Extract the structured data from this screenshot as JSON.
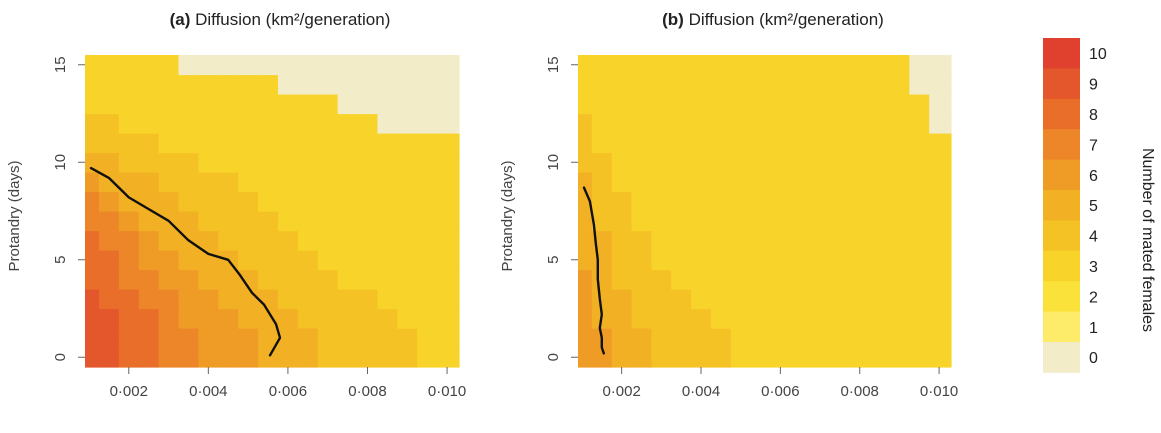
{
  "colors": {
    "scale": [
      "#f2ecc8",
      "#fcec6a",
      "#fbe23a",
      "#f8d42a",
      "#f5c226",
      "#f2b025",
      "#ef9c27",
      "#ec8628",
      "#e86e2a",
      "#e4562c",
      "#e0402e"
    ],
    "line": "#111111"
  },
  "chart_data": [
    {
      "type": "heatmap",
      "panel": "(a)",
      "title": "Diffusion (km²/generation)",
      "ylabel": "Protandry (days)",
      "xlabel": "",
      "xlim": [
        0.0009,
        0.0103
      ],
      "ylim": [
        -0.5,
        15.5
      ],
      "xticks": [
        0.002,
        0.004,
        0.006,
        0.008,
        0.01
      ],
      "xtick_labels": [
        "0·002",
        "0·004",
        "0·006",
        "0·008",
        "0·010"
      ],
      "yticks": [
        0,
        5,
        10,
        15
      ],
      "x": [
        0.001,
        0.0015,
        0.002,
        0.0025,
        0.003,
        0.0035,
        0.004,
        0.0045,
        0.005,
        0.0055,
        0.006,
        0.0065,
        0.007,
        0.0075,
        0.008,
        0.0085,
        0.009,
        0.0095,
        0.01
      ],
      "y": [
        0,
        1,
        2,
        3,
        4,
        5,
        6,
        7,
        8,
        9,
        10,
        11,
        12,
        13,
        14,
        15
      ],
      "values": [
        [
          9,
          9,
          8,
          8,
          7,
          7,
          6,
          6,
          6,
          5,
          5,
          5,
          4,
          4,
          4,
          4,
          4,
          3,
          3
        ],
        [
          9,
          9,
          8,
          8,
          7,
          7,
          6,
          6,
          6,
          5,
          5,
          5,
          4,
          4,
          4,
          4,
          4,
          3,
          3
        ],
        [
          9,
          9,
          8,
          8,
          7,
          6,
          6,
          6,
          5,
          5,
          5,
          4,
          4,
          4,
          4,
          4,
          3,
          3,
          3
        ],
        [
          9,
          8,
          8,
          7,
          7,
          6,
          6,
          5,
          5,
          5,
          4,
          4,
          4,
          4,
          4,
          3,
          3,
          3,
          3
        ],
        [
          8,
          8,
          7,
          7,
          6,
          6,
          5,
          5,
          5,
          4,
          4,
          4,
          4,
          3,
          3,
          3,
          3,
          3,
          3
        ],
        [
          8,
          8,
          7,
          6,
          6,
          5,
          5,
          5,
          4,
          4,
          4,
          4,
          3,
          3,
          3,
          3,
          3,
          3,
          3
        ],
        [
          8,
          7,
          7,
          6,
          5,
          5,
          5,
          4,
          4,
          4,
          4,
          3,
          3,
          3,
          3,
          3,
          3,
          3,
          3
        ],
        [
          7,
          7,
          6,
          5,
          5,
          5,
          4,
          4,
          4,
          4,
          3,
          3,
          3,
          3,
          3,
          3,
          3,
          3,
          3
        ],
        [
          7,
          6,
          5,
          5,
          5,
          4,
          4,
          4,
          4,
          3,
          3,
          3,
          3,
          3,
          3,
          3,
          3,
          3,
          3
        ],
        [
          6,
          5,
          5,
          5,
          4,
          4,
          4,
          4,
          3,
          3,
          3,
          3,
          3,
          3,
          3,
          3,
          3,
          3,
          3
        ],
        [
          5,
          5,
          4,
          4,
          4,
          4,
          3,
          3,
          3,
          3,
          3,
          3,
          3,
          3,
          3,
          3,
          3,
          3,
          3
        ],
        [
          4,
          4,
          4,
          4,
          3,
          3,
          3,
          3,
          3,
          3,
          3,
          3,
          3,
          3,
          3,
          3,
          3,
          3,
          3
        ],
        [
          4,
          4,
          3,
          3,
          3,
          3,
          3,
          3,
          3,
          3,
          3,
          3,
          3,
          3,
          3,
          0,
          0,
          0,
          0
        ],
        [
          3,
          3,
          3,
          3,
          3,
          3,
          3,
          3,
          3,
          3,
          3,
          3,
          3,
          0,
          0,
          0,
          0,
          0,
          0
        ],
        [
          3,
          3,
          3,
          3,
          3,
          3,
          3,
          3,
          3,
          3,
          0,
          0,
          0,
          0,
          0,
          0,
          0,
          0,
          0
        ],
        [
          3,
          3,
          3,
          3,
          3,
          0,
          0,
          0,
          0,
          0,
          0,
          0,
          0,
          0,
          0,
          0,
          0,
          0,
          0
        ]
      ],
      "line": {
        "x": [
          0.00105,
          0.0015,
          0.002,
          0.0025,
          0.003,
          0.0035,
          0.004,
          0.0045,
          0.0048,
          0.0051,
          0.0054,
          0.0057,
          0.0058,
          0.00555
        ],
        "y": [
          9.7,
          9.2,
          8.2,
          7.6,
          7.0,
          6.0,
          5.3,
          5.0,
          4.2,
          3.3,
          2.7,
          1.7,
          1.0,
          0.1
        ]
      }
    },
    {
      "type": "heatmap",
      "panel": "(b)",
      "title": "Diffusion (km²/generation)",
      "ylabel": "Protandry (days)",
      "xlabel": "",
      "xlim": [
        0.0009,
        0.0103
      ],
      "ylim": [
        -0.5,
        15.5
      ],
      "xticks": [
        0.002,
        0.004,
        0.006,
        0.008,
        0.01
      ],
      "xtick_labels": [
        "0·002",
        "0·004",
        "0·006",
        "0·008",
        "0·010"
      ],
      "yticks": [
        0,
        5,
        10,
        15
      ],
      "x": [
        0.001,
        0.0015,
        0.002,
        0.0025,
        0.003,
        0.0035,
        0.004,
        0.0045,
        0.005,
        0.0055,
        0.006,
        0.0065,
        0.007,
        0.0075,
        0.008,
        0.0085,
        0.009,
        0.0095,
        0.01
      ],
      "y": [
        0,
        1,
        2,
        3,
        4,
        5,
        6,
        7,
        8,
        9,
        10,
        11,
        12,
        13,
        14,
        15
      ],
      "values": [
        [
          6,
          6,
          5,
          5,
          4,
          4,
          4,
          4,
          3,
          3,
          3,
          3,
          3,
          3,
          3,
          3,
          3,
          3,
          3
        ],
        [
          6,
          6,
          5,
          5,
          4,
          4,
          4,
          4,
          3,
          3,
          3,
          3,
          3,
          3,
          3,
          3,
          3,
          3,
          3
        ],
        [
          6,
          5,
          5,
          4,
          4,
          4,
          4,
          3,
          3,
          3,
          3,
          3,
          3,
          3,
          3,
          3,
          3,
          3,
          3
        ],
        [
          6,
          5,
          5,
          4,
          4,
          4,
          3,
          3,
          3,
          3,
          3,
          3,
          3,
          3,
          3,
          3,
          3,
          3,
          3
        ],
        [
          6,
          5,
          4,
          4,
          4,
          3,
          3,
          3,
          3,
          3,
          3,
          3,
          3,
          3,
          3,
          3,
          3,
          3,
          3
        ],
        [
          5,
          5,
          4,
          4,
          3,
          3,
          3,
          3,
          3,
          3,
          3,
          3,
          3,
          3,
          3,
          3,
          3,
          3,
          3
        ],
        [
          5,
          5,
          4,
          4,
          3,
          3,
          3,
          3,
          3,
          3,
          3,
          3,
          3,
          3,
          3,
          3,
          3,
          3,
          3
        ],
        [
          5,
          4,
          4,
          3,
          3,
          3,
          3,
          3,
          3,
          3,
          3,
          3,
          3,
          3,
          3,
          3,
          3,
          3,
          3
        ],
        [
          5,
          4,
          4,
          3,
          3,
          3,
          3,
          3,
          3,
          3,
          3,
          3,
          3,
          3,
          3,
          3,
          3,
          3,
          3
        ],
        [
          5,
          4,
          3,
          3,
          3,
          3,
          3,
          3,
          3,
          3,
          3,
          3,
          3,
          3,
          3,
          3,
          3,
          3,
          3
        ],
        [
          4,
          4,
          3,
          3,
          3,
          3,
          3,
          3,
          3,
          3,
          3,
          3,
          3,
          3,
          3,
          3,
          3,
          3,
          3
        ],
        [
          4,
          3,
          3,
          3,
          3,
          3,
          3,
          3,
          3,
          3,
          3,
          3,
          3,
          3,
          3,
          3,
          3,
          3,
          3
        ],
        [
          4,
          3,
          3,
          3,
          3,
          3,
          3,
          3,
          3,
          3,
          3,
          3,
          3,
          3,
          3,
          3,
          3,
          3,
          0
        ],
        [
          3,
          3,
          3,
          3,
          3,
          3,
          3,
          3,
          3,
          3,
          3,
          3,
          3,
          3,
          3,
          3,
          3,
          3,
          0
        ],
        [
          3,
          3,
          3,
          3,
          3,
          3,
          3,
          3,
          3,
          3,
          3,
          3,
          3,
          3,
          3,
          3,
          3,
          0,
          0
        ],
        [
          3,
          3,
          3,
          3,
          3,
          3,
          3,
          3,
          3,
          3,
          3,
          3,
          3,
          3,
          3,
          3,
          3,
          0,
          0
        ]
      ],
      "line": {
        "x": [
          0.00105,
          0.0012,
          0.0013,
          0.00135,
          0.0014,
          0.0014,
          0.00145,
          0.0015,
          0.00145,
          0.0015,
          0.0015,
          0.00155
        ],
        "y": [
          8.7,
          8.0,
          6.8,
          5.8,
          5.0,
          4.0,
          3.0,
          2.2,
          1.5,
          1.0,
          0.5,
          0.2
        ]
      }
    }
  ],
  "legend": {
    "title": "Number of mated females",
    "levels": [
      10,
      9,
      8,
      7,
      6,
      5,
      4,
      3,
      2,
      1,
      0
    ]
  }
}
